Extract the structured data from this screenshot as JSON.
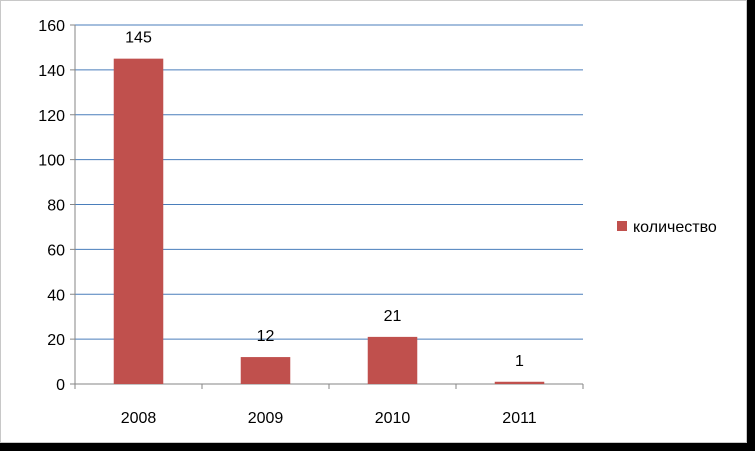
{
  "colors": {
    "bar": "#c0504d",
    "gridline": "#4a7ebb",
    "axis": "#868686",
    "background": "#ffffff"
  },
  "chart_data": {
    "type": "bar",
    "title": "",
    "xlabel": "",
    "ylabel": "",
    "categories": [
      "2008",
      "2009",
      "2010",
      "2011"
    ],
    "series": [
      {
        "name": "количество",
        "values": [
          145,
          12,
          21,
          1
        ]
      }
    ],
    "ylim": [
      0,
      160
    ],
    "yticks": [
      0,
      20,
      40,
      60,
      80,
      100,
      120,
      140,
      160
    ],
    "data_labels": [
      "145",
      "12",
      "21",
      "1"
    ],
    "grid": true,
    "legend_position": "right"
  }
}
